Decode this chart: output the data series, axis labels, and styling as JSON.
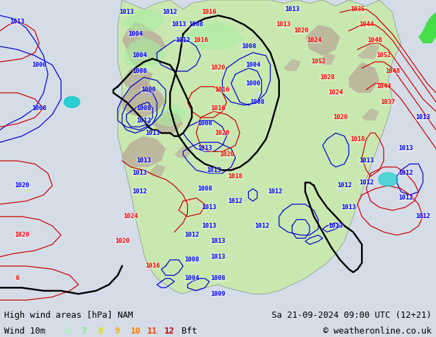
{
  "title_left": "High wind areas [hPa] NAM",
  "title_right": "Sa 21-09-2024 09:00 UTC (12+21)",
  "subtitle_left": "Wind 10m",
  "subtitle_right": "© weatheronline.co.uk",
  "legend_nums": [
    "6",
    "7",
    "8",
    "9",
    "10",
    "11",
    "12"
  ],
  "legend_colors": [
    "#aaffaa",
    "#77ee77",
    "#dddd00",
    "#ffaa00",
    "#ff7700",
    "#ff4400",
    "#cc0000"
  ],
  "bg_color": "#d4dce8",
  "ocean_color": "#d4dce8",
  "land_color": "#c8e8b0",
  "mountain_color": "#b8a898",
  "wind_area_color": "#90e890",
  "bottom_bar_color": "#e0e0e0",
  "text_color": "#000000",
  "title_fontsize": 9,
  "label_fontsize": 6.5,
  "figsize": [
    6.34,
    4.9
  ],
  "dpi": 100
}
